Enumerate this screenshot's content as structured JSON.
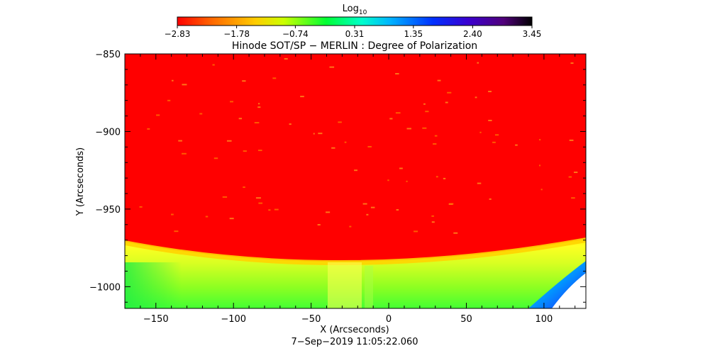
{
  "chart_data": {
    "type": "heatmap",
    "title": "Hinode SOT/SP − MERLIN : Degree of Polarization",
    "xlabel": "X (Arcseconds)",
    "ylabel": "Y (Arcseconds)",
    "timestamp": "7−Sep−2019 11:05:22.060",
    "xlim": [
      -170,
      127
    ],
    "ylim": [
      -1014,
      -850
    ],
    "x_ticks": [
      -150,
      -100,
      -50,
      0,
      50,
      100
    ],
    "y_ticks": [
      -850,
      -900,
      -950,
      -1000
    ],
    "x_tick_labels": [
      "−150",
      "−100",
      "−50",
      "0",
      "50",
      "100"
    ],
    "y_tick_labels": [
      "−850",
      "−900",
      "−950",
      "−1000"
    ],
    "colorbar": {
      "label_base": "Log",
      "label_sub": "10",
      "scale": "log",
      "min": -2.83,
      "max": 3.45,
      "ticks": [
        -2.83,
        -1.78,
        -0.74,
        0.31,
        1.35,
        2.4,
        3.45
      ],
      "tick_labels": [
        "−2.83",
        "−1.78",
        "−0.74",
        "0.31",
        "1.35",
        "2.40",
        "3.45"
      ],
      "colormap": [
        "#ff0000",
        "#ff7f00",
        "#ffff00",
        "#00ff00",
        "#00ffff",
        "#0000ff",
        "#7f00ff",
        "#000000"
      ]
    },
    "regions": {
      "disk": {
        "dominant_value": -2.83,
        "color": "#ff0000"
      },
      "limb_band": {
        "dominant_value": -1.3,
        "color": "#ffff00"
      },
      "off_limb": {
        "dominant_value": -0.9,
        "color": "#44ff33"
      },
      "no_data": {
        "color": "#ffffff"
      }
    },
    "limb_y_at_x": [
      {
        "x": -170,
        "y": -971
      },
      {
        "x": -20,
        "y": -983
      },
      {
        "x": 127,
        "y": -970
      }
    ]
  }
}
